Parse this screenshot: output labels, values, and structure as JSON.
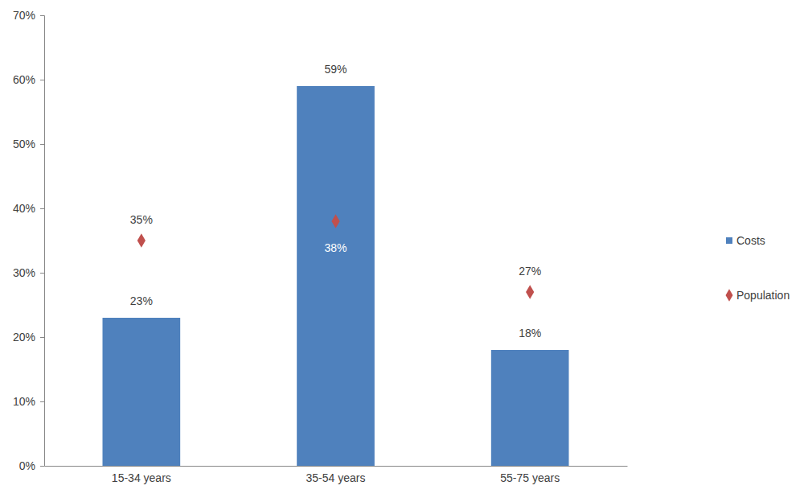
{
  "chart_data": {
    "type": "bar",
    "categories": [
      "15-34 years",
      "35-54 years",
      "55-75 years"
    ],
    "series": [
      {
        "name": "Costs",
        "type": "bar",
        "color": "#4f81bd",
        "values": [
          23,
          59,
          18
        ],
        "value_labels": [
          "23%",
          "59%",
          "18%"
        ]
      },
      {
        "name": "Population",
        "type": "scatter",
        "marker": "diamond",
        "color": "#c0504d",
        "values": [
          35,
          38,
          27
        ],
        "value_labels": [
          "35%",
          "38%",
          "27%"
        ]
      }
    ],
    "ylim": [
      0,
      70
    ],
    "yticks": [
      {
        "value": 0,
        "label": "0%"
      },
      {
        "value": 10,
        "label": "10%"
      },
      {
        "value": 20,
        "label": "20%"
      },
      {
        "value": 30,
        "label": "30%"
      },
      {
        "value": 40,
        "label": "40%"
      },
      {
        "value": 50,
        "label": "50%"
      },
      {
        "value": 60,
        "label": "60%"
      },
      {
        "value": 70,
        "label": "70%"
      }
    ],
    "grid": false,
    "legend": "right",
    "data_labels": true
  }
}
